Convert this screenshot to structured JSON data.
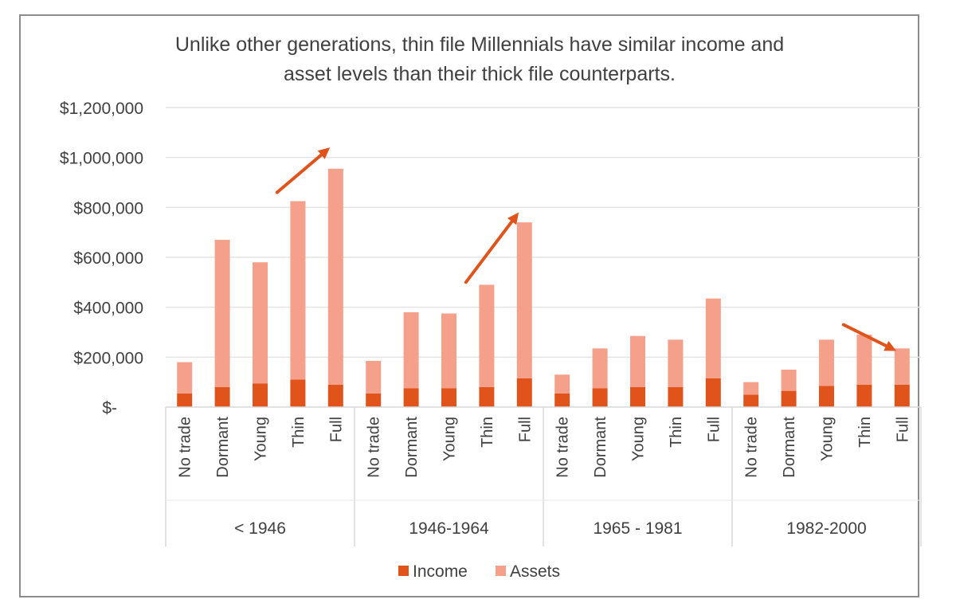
{
  "chart_data": {
    "type": "bar",
    "stacked": true,
    "title_lines": [
      "Unlike other generations, thin file Millennials have similar income and",
      "asset levels than their thick file counterparts."
    ],
    "xlabel": "",
    "ylabel": "",
    "ylim": [
      0,
      1200000
    ],
    "yticks": [
      {
        "value": 0,
        "label": "$-"
      },
      {
        "value": 200000,
        "label": "$200,000"
      },
      {
        "value": 400000,
        "label": "$400,000"
      },
      {
        "value": 600000,
        "label": "$600,000"
      },
      {
        "value": 800000,
        "label": "$800,000"
      },
      {
        "value": 1000000,
        "label": "$1,000,000"
      },
      {
        "value": 1200000,
        "label": "$1,200,000"
      }
    ],
    "grid": true,
    "legend_position": "bottom",
    "groups": [
      {
        "label": "< 1946",
        "categories": [
          "No trade",
          "Dormant",
          "Young",
          "Thin",
          "Full"
        ]
      },
      {
        "label": "1946-1964",
        "categories": [
          "No trade",
          "Dormant",
          "Young",
          "Thin",
          "Full"
        ]
      },
      {
        "label": "1965  -  1981",
        "categories": [
          "No trade",
          "Dormant",
          "Young",
          "Thin",
          "Full"
        ]
      },
      {
        "label": "1982-2000",
        "categories": [
          "No trade",
          "Dormant",
          "Young",
          "Thin",
          "Full"
        ]
      }
    ],
    "series": [
      {
        "name": "Income",
        "color": "#e0541c",
        "values": [
          55000,
          80000,
          95000,
          110000,
          90000,
          55000,
          75000,
          75000,
          80000,
          115000,
          55000,
          75000,
          80000,
          80000,
          115000,
          50000,
          65000,
          85000,
          90000,
          90000
        ]
      },
      {
        "name": "Assets",
        "color": "#f4a08a",
        "values": [
          125000,
          590000,
          485000,
          715000,
          865000,
          130000,
          305000,
          300000,
          410000,
          625000,
          75000,
          160000,
          205000,
          190000,
          320000,
          50000,
          85000,
          185000,
          200000,
          145000
        ]
      }
    ],
    "annotations": [
      {
        "type": "arrow",
        "color": "#e0541c",
        "from": {
          "bar": 3,
          "value": 860000
        },
        "to": {
          "bar": 4,
          "value": 1040000
        }
      },
      {
        "type": "arrow",
        "color": "#e0541c",
        "from": {
          "bar": 8,
          "value": 500000
        },
        "to": {
          "bar": 9,
          "value": 780000
        }
      },
      {
        "type": "arrow",
        "color": "#e0541c",
        "from": {
          "bar": 18,
          "value": 330000
        },
        "to": {
          "bar": 19,
          "value": 225000
        }
      }
    ]
  }
}
